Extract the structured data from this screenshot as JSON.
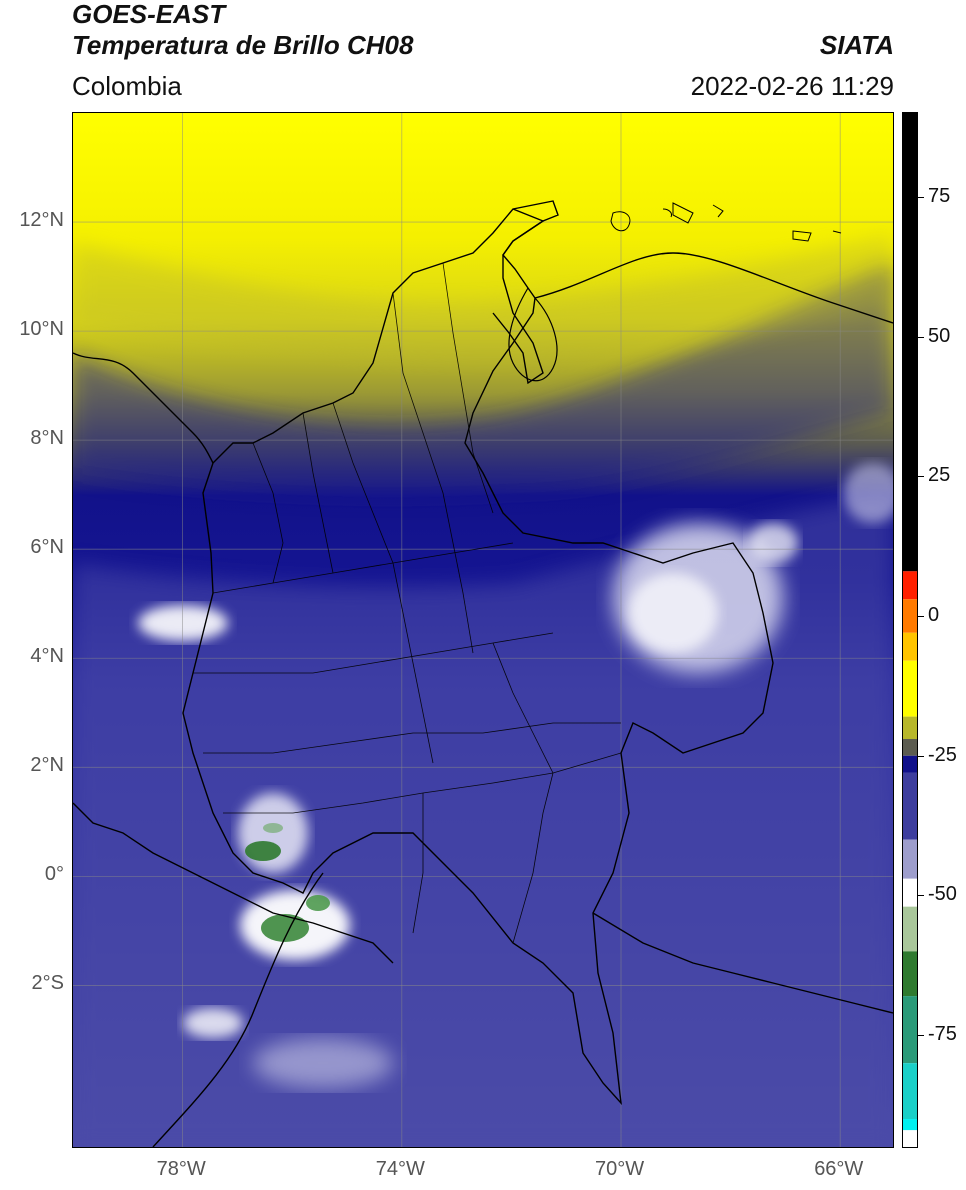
{
  "header": {
    "title_line1": "GOES-EAST",
    "title_line2": "Temperatura de Brillo CH08",
    "agency": "SIATA",
    "region": "Colombia",
    "datetime": "2022-02-26 11:29"
  },
  "map": {
    "lon_range": [
      -80,
      -65
    ],
    "lat_range": [
      -5,
      14
    ],
    "lon_ticks": [
      {
        "value": -78,
        "label": "78°W"
      },
      {
        "value": -74,
        "label": "74°W"
      },
      {
        "value": -70,
        "label": "70°W"
      },
      {
        "value": -66,
        "label": "66°W"
      }
    ],
    "lat_ticks": [
      {
        "value": 12,
        "label": "12°N"
      },
      {
        "value": 10,
        "label": "10°N"
      },
      {
        "value": 8,
        "label": "8°N"
      },
      {
        "value": 6,
        "label": "6°N"
      },
      {
        "value": 4,
        "label": "4°N"
      },
      {
        "value": 2,
        "label": "2°N"
      },
      {
        "value": 0,
        "label": "0°"
      },
      {
        "value": -2,
        "label": "2°S"
      }
    ],
    "grid": true
  },
  "colorbar": {
    "range": [
      -95,
      90
    ],
    "ticks": [
      {
        "value": 75,
        "label": "75"
      },
      {
        "value": 50,
        "label": "50"
      },
      {
        "value": 25,
        "label": "25"
      },
      {
        "value": 0,
        "label": "0"
      },
      {
        "value": -25,
        "label": "-25"
      },
      {
        "value": -50,
        "label": "-50"
      },
      {
        "value": -75,
        "label": "-75"
      }
    ],
    "segments": [
      {
        "from": 8,
        "to": 90,
        "color": "#000000"
      },
      {
        "from": 3,
        "to": 8,
        "color": "#ff2000"
      },
      {
        "from": -3,
        "to": 3,
        "color": "#ff7a00"
      },
      {
        "from": -8,
        "to": -3,
        "color": "#ffc400"
      },
      {
        "from": -18,
        "to": -8,
        "color": "#ffff00"
      },
      {
        "from": -22,
        "to": -18,
        "color": "#b8b82a"
      },
      {
        "from": -25,
        "to": -22,
        "color": "#5c5c50"
      },
      {
        "from": -28,
        "to": -25,
        "color": "#10108a"
      },
      {
        "from": -40,
        "to": -28,
        "color": "#3d3d9e"
      },
      {
        "from": -47,
        "to": -40,
        "color": "#9d9dcc"
      },
      {
        "from": -52,
        "to": -47,
        "color": "#ffffff"
      },
      {
        "from": -60,
        "to": -52,
        "color": "#a9c79a"
      },
      {
        "from": -68,
        "to": -60,
        "color": "#2f7a2f"
      },
      {
        "from": -80,
        "to": -68,
        "color": "#2a9a78"
      },
      {
        "from": -90,
        "to": -80,
        "color": "#1ad0c8"
      },
      {
        "from": -92,
        "to": -90,
        "color": "#00f0f0"
      },
      {
        "from": -95,
        "to": -92,
        "color": "#ffffff"
      }
    ]
  }
}
